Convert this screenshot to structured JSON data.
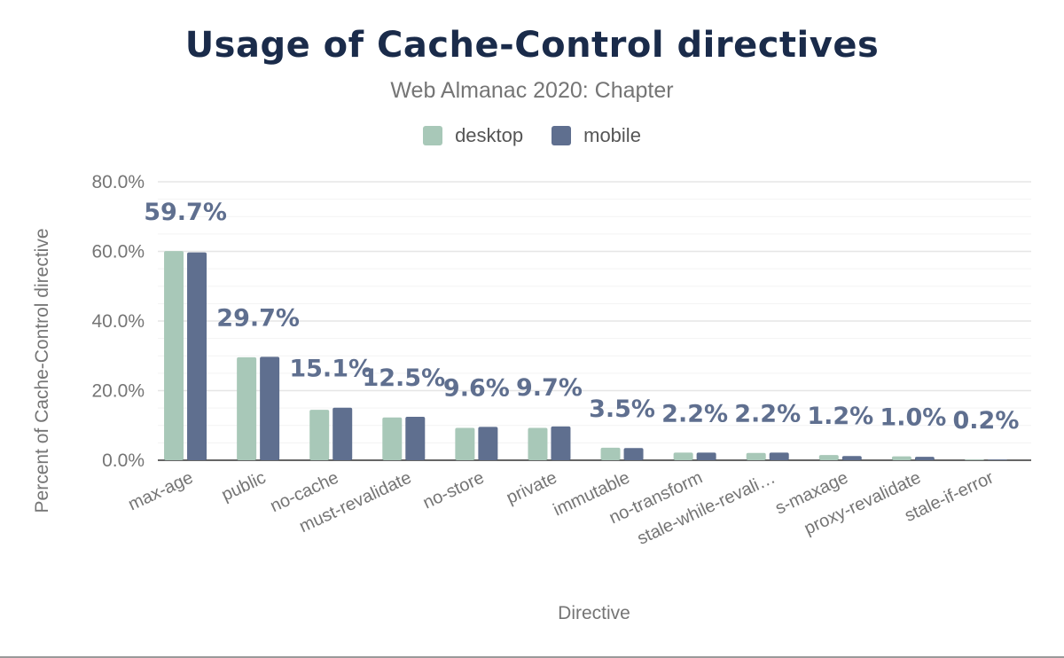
{
  "title": "Usage of Cache-Control directives",
  "subtitle": "Web Almanac 2020: Chapter",
  "legend": [
    {
      "name": "desktop",
      "color": "#a8c8b8"
    },
    {
      "name": "mobile",
      "color": "#5f6f8f"
    }
  ],
  "chart_data": {
    "type": "bar",
    "title": "Usage of Cache-Control directives",
    "subtitle": "Web Almanac 2020: Chapter",
    "xlabel": "Directive",
    "ylabel": "Percent of Cache-Control directive",
    "ylim": [
      0,
      80
    ],
    "yticks": [
      "0.0%",
      "20.0%",
      "40.0%",
      "60.0%",
      "80.0%"
    ],
    "grid": true,
    "legend_position": "top",
    "categories": [
      "max-age",
      "public",
      "no-cache",
      "must-revalidate",
      "no-store",
      "private",
      "immutable",
      "no-transform",
      "stale-while-revali…",
      "s-maxage",
      "proxy-revalidate",
      "stale-if-error"
    ],
    "series": [
      {
        "name": "desktop",
        "color": "#a8c8b8",
        "values": [
          60.1,
          29.6,
          14.5,
          12.3,
          9.3,
          9.3,
          3.6,
          2.2,
          2.1,
          1.5,
          1.1,
          0.2
        ]
      },
      {
        "name": "mobile",
        "color": "#5f6f8f",
        "values": [
          59.7,
          29.7,
          15.1,
          12.5,
          9.6,
          9.7,
          3.5,
          2.2,
          2.2,
          1.2,
          1.0,
          0.2
        ]
      }
    ],
    "data_labels": [
      "59.7%",
      "29.7%",
      "15.1%",
      "12.5%",
      "9.6%",
      "9.7%",
      "3.5%",
      "2.2%",
      "2.2%",
      "1.2%",
      "1.0%",
      "0.2%"
    ],
    "label_color": "#5f6f8f"
  }
}
